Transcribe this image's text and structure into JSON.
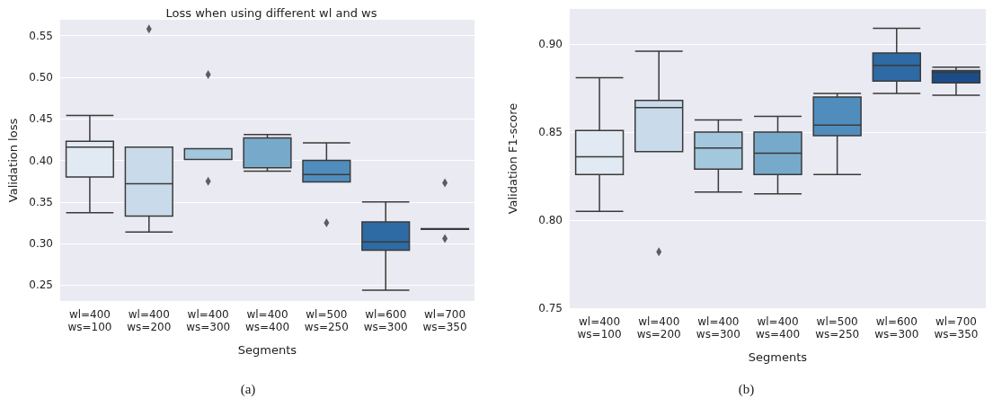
{
  "chart_data": [
    {
      "type": "box",
      "title": "Loss when using different wl and ws",
      "xlabel": "Segments",
      "ylabel": "Validation loss",
      "annotations": [
        "(a)"
      ],
      "categories": [
        "wl=400\nws=100",
        "wl=400\nws=200",
        "wl=400\nws=300",
        "wl=400\nws=400",
        "wl=500\nws=250",
        "wl=600\nws=300",
        "wl=700\nws=350"
      ],
      "colors": [
        "#e1e9f2",
        "#c9dbea",
        "#a3c7dd",
        "#77a9cb",
        "#508dbd",
        "#2e6aa4",
        "#1c4c88"
      ],
      "boxes": [
        {
          "low": 0.337,
          "q1": 0.38,
          "median": 0.416,
          "q3": 0.423,
          "high": 0.454
        },
        {
          "low": 0.314,
          "q1": 0.333,
          "median": 0.372,
          "q3": 0.416,
          "high": 0.416,
          "outliers": [
            0.558
          ]
        },
        {
          "low": 0.401,
          "q1": 0.401,
          "median": 0.414,
          "q3": 0.414,
          "high": 0.414,
          "outliers": [
            0.503,
            0.375
          ]
        },
        {
          "low": 0.387,
          "q1": 0.391,
          "median": 0.427,
          "q3": 0.427,
          "high": 0.431
        },
        {
          "low": 0.374,
          "q1": 0.374,
          "median": 0.383,
          "q3": 0.4,
          "high": 0.421,
          "outliers": [
            0.325
          ]
        },
        {
          "low": 0.244,
          "q1": 0.292,
          "median": 0.302,
          "q3": 0.326,
          "high": 0.35
        },
        {
          "low": 0.317,
          "q1": 0.317,
          "median": 0.317,
          "q3": 0.318,
          "high": 0.318,
          "outliers": [
            0.373,
            0.306
          ]
        }
      ],
      "ylim": [
        0.231,
        0.569
      ],
      "yticks": [
        {
          "value": 0.25,
          "label": "0.25"
        },
        {
          "value": 0.3,
          "label": "0.30"
        },
        {
          "value": 0.35,
          "label": "0.35"
        },
        {
          "value": 0.4,
          "label": "0.40"
        },
        {
          "value": 0.45,
          "label": "0.45"
        },
        {
          "value": 0.5,
          "label": "0.50"
        },
        {
          "value": 0.55,
          "label": "0.55"
        }
      ],
      "grid": "y",
      "marker": "diamond"
    },
    {
      "type": "box",
      "xlabel": "Segments",
      "ylabel": "Validation F1-score",
      "annotations": [
        "(b)"
      ],
      "categories": [
        "wl=400\nws=100",
        "wl=400\nws=200",
        "wl=400\nws=300",
        "wl=400\nws=400",
        "wl=500\nws=250",
        "wl=600\nws=300",
        "wl=700\nws=350"
      ],
      "colors": [
        "#e1e9f2",
        "#c9dbea",
        "#a3c7dd",
        "#77a9cb",
        "#508dbd",
        "#2e6aa4",
        "#1c4c88"
      ],
      "boxes": [
        {
          "low": 0.805,
          "q1": 0.826,
          "median": 0.836,
          "q3": 0.851,
          "high": 0.881
        },
        {
          "low": 0.839,
          "q1": 0.839,
          "median": 0.864,
          "q3": 0.868,
          "high": 0.896,
          "outliers": [
            0.782
          ]
        },
        {
          "low": 0.816,
          "q1": 0.829,
          "median": 0.841,
          "q3": 0.85,
          "high": 0.857
        },
        {
          "low": 0.815,
          "q1": 0.826,
          "median": 0.838,
          "q3": 0.85,
          "high": 0.859
        },
        {
          "low": 0.826,
          "q1": 0.848,
          "median": 0.854,
          "q3": 0.87,
          "high": 0.872
        },
        {
          "low": 0.872,
          "q1": 0.879,
          "median": 0.888,
          "q3": 0.895,
          "high": 0.909
        },
        {
          "low": 0.871,
          "q1": 0.878,
          "median": 0.884,
          "q3": 0.885,
          "high": 0.887
        }
      ],
      "ylim": [
        0.75,
        0.92
      ],
      "yticks": [
        {
          "value": 0.75,
          "label": "0.75"
        },
        {
          "value": 0.8,
          "label": "0.80"
        },
        {
          "value": 0.85,
          "label": "0.85"
        },
        {
          "value": 0.9,
          "label": "0.90"
        }
      ],
      "grid": "y",
      "marker": "diamond"
    }
  ]
}
